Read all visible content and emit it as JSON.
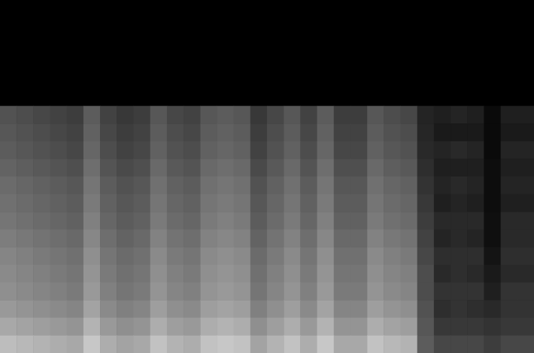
{
  "chart_data": {
    "type": "heatmap",
    "tick_labels": false,
    "grid": false,
    "color": "#ffffff",
    "zlim": [
      0,
      100
    ],
    "cells": [
      [
        0,
        0,
        0,
        0,
        0,
        0,
        0,
        0,
        0,
        0,
        0,
        0,
        0,
        0,
        0,
        0,
        0,
        0,
        0,
        0,
        0,
        0,
        0,
        0,
        0,
        0,
        0,
        0,
        0,
        0,
        0,
        0
      ],
      [
        0,
        0,
        0,
        0,
        0,
        0,
        0,
        0,
        0,
        0,
        0,
        0,
        0,
        0,
        0,
        0,
        0,
        0,
        0,
        0,
        0,
        0,
        0,
        0,
        0,
        0,
        0,
        0,
        0,
        0,
        0,
        0
      ],
      [
        0,
        0,
        0,
        0,
        0,
        0,
        0,
        0,
        0,
        0,
        0,
        0,
        0,
        0,
        0,
        0,
        0,
        0,
        0,
        0,
        0,
        0,
        0,
        0,
        0,
        0,
        0,
        0,
        0,
        0,
        0,
        0
      ],
      [
        0,
        0,
        0,
        0,
        0,
        0,
        0,
        0,
        0,
        0,
        0,
        0,
        0,
        0,
        0,
        0,
        0,
        0,
        0,
        0,
        0,
        0,
        0,
        0,
        0,
        0,
        0,
        0,
        0,
        0,
        0,
        0
      ],
      [
        0,
        0,
        0,
        0,
        0,
        0,
        0,
        0,
        0,
        0,
        0,
        0,
        0,
        0,
        0,
        0,
        0,
        0,
        0,
        0,
        0,
        0,
        0,
        0,
        0,
        0,
        0,
        0,
        0,
        0,
        0,
        0
      ],
      [
        0,
        0,
        0,
        0,
        0,
        0,
        0,
        0,
        0,
        0,
        0,
        0,
        0,
        0,
        0,
        0,
        0,
        0,
        0,
        0,
        0,
        0,
        0,
        0,
        0,
        0,
        0,
        0,
        0,
        0,
        0,
        0
      ],
      [
        32,
        30,
        28,
        26,
        24,
        36,
        26,
        22,
        24,
        34,
        28,
        26,
        34,
        36,
        34,
        22,
        28,
        34,
        26,
        36,
        24,
        24,
        34,
        30,
        28,
        14,
        12,
        14,
        12,
        4,
        12,
        12
      ],
      [
        34,
        32,
        30,
        28,
        26,
        38,
        28,
        24,
        26,
        36,
        30,
        28,
        36,
        38,
        36,
        24,
        30,
        36,
        28,
        38,
        26,
        26,
        36,
        32,
        30,
        15,
        10,
        10,
        10,
        4,
        10,
        10
      ],
      [
        36,
        34,
        32,
        30,
        28,
        40,
        30,
        26,
        28,
        38,
        32,
        30,
        38,
        40,
        38,
        26,
        32,
        38,
        30,
        40,
        28,
        28,
        38,
        34,
        32,
        16,
        14,
        16,
        14,
        4,
        14,
        14
      ],
      [
        39,
        37,
        35,
        33,
        31,
        43,
        33,
        29,
        31,
        41,
        35,
        33,
        41,
        43,
        41,
        29,
        35,
        41,
        33,
        43,
        31,
        31,
        41,
        37,
        35,
        18,
        12,
        12,
        12,
        5,
        12,
        12
      ],
      [
        42,
        40,
        38,
        36,
        34,
        46,
        36,
        32,
        34,
        44,
        38,
        36,
        44,
        46,
        44,
        32,
        38,
        44,
        36,
        46,
        34,
        34,
        44,
        40,
        38,
        20,
        14,
        16,
        14,
        5,
        14,
        14
      ],
      [
        44,
        42,
        40,
        38,
        36,
        48,
        38,
        34,
        36,
        46,
        40,
        38,
        46,
        48,
        46,
        34,
        40,
        46,
        38,
        48,
        36,
        36,
        46,
        42,
        40,
        22,
        12,
        14,
        12,
        5,
        12,
        12
      ],
      [
        46,
        44,
        42,
        40,
        38,
        50,
        40,
        36,
        38,
        48,
        42,
        40,
        48,
        50,
        48,
        36,
        42,
        48,
        40,
        50,
        38,
        38,
        48,
        44,
        42,
        24,
        16,
        16,
        16,
        6,
        16,
        16
      ],
      [
        49,
        47,
        45,
        43,
        41,
        53,
        43,
        39,
        41,
        51,
        45,
        43,
        51,
        53,
        51,
        39,
        45,
        51,
        43,
        53,
        41,
        41,
        51,
        47,
        45,
        26,
        14,
        16,
        14,
        6,
        16,
        16
      ],
      [
        52,
        50,
        48,
        46,
        44,
        56,
        46,
        42,
        44,
        54,
        48,
        46,
        54,
        56,
        54,
        42,
        48,
        54,
        46,
        56,
        44,
        44,
        54,
        50,
        48,
        28,
        18,
        18,
        18,
        8,
        18,
        18
      ],
      [
        54,
        52,
        50,
        48,
        46,
        58,
        48,
        44,
        46,
        56,
        50,
        48,
        56,
        58,
        56,
        44,
        50,
        56,
        48,
        58,
        46,
        46,
        56,
        52,
        50,
        30,
        16,
        18,
        16,
        10,
        16,
        16
      ],
      [
        56,
        54,
        52,
        50,
        48,
        60,
        50,
        46,
        48,
        58,
        52,
        50,
        58,
        60,
        58,
        46,
        52,
        58,
        50,
        60,
        48,
        48,
        58,
        54,
        52,
        30,
        20,
        20,
        20,
        12,
        20,
        20
      ],
      [
        60,
        58,
        56,
        54,
        52,
        64,
        54,
        50,
        52,
        62,
        56,
        54,
        62,
        64,
        62,
        50,
        56,
        62,
        54,
        64,
        52,
        52,
        62,
        58,
        56,
        32,
        18,
        20,
        18,
        16,
        20,
        20
      ],
      [
        66,
        64,
        62,
        60,
        58,
        70,
        60,
        56,
        58,
        68,
        62,
        60,
        68,
        70,
        68,
        56,
        62,
        68,
        60,
        70,
        58,
        58,
        68,
        64,
        62,
        34,
        22,
        22,
        22,
        20,
        22,
        22
      ],
      [
        74,
        72,
        70,
        68,
        66,
        78,
        68,
        64,
        66,
        76,
        70,
        68,
        76,
        78,
        76,
        64,
        70,
        76,
        68,
        78,
        66,
        66,
        76,
        72,
        70,
        36,
        28,
        28,
        28,
        24,
        28,
        28
      ]
    ]
  }
}
